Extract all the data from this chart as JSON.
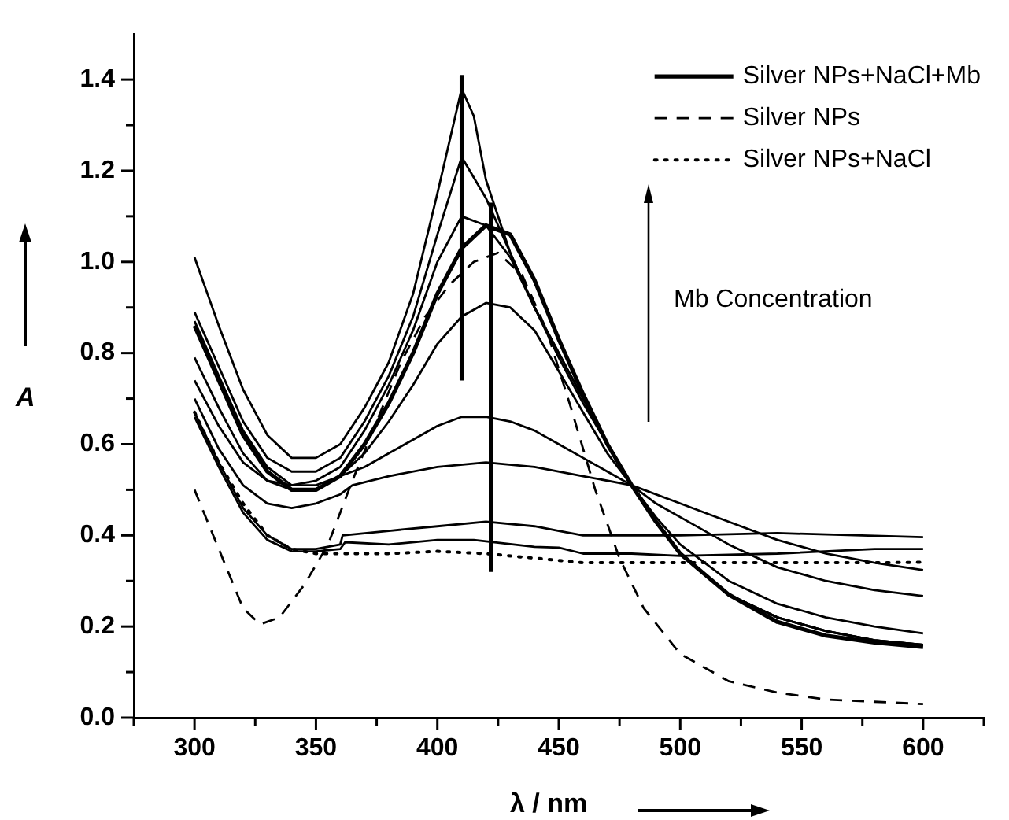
{
  "chart_data": {
    "type": "line",
    "xlabel": "λ / nm",
    "ylabel": "A",
    "xlim": [
      275,
      625
    ],
    "ylim": [
      0,
      1.5
    ],
    "xticks": [
      {
        "value": 275,
        "label": null
      },
      300,
      {
        "value": 325,
        "label": null
      },
      350,
      {
        "value": 375,
        "label": null
      },
      400,
      {
        "value": 425,
        "label": null
      },
      450,
      {
        "value": 475,
        "label": null
      },
      500,
      {
        "value": 525,
        "label": null
      },
      550,
      {
        "value": 575,
        "label": null
      },
      600,
      {
        "value": 625,
        "label": null
      }
    ],
    "yticks": [
      {
        "value": 0,
        "label": "0.0"
      },
      {
        "value": 0.1,
        "label": null
      },
      {
        "value": 0.2,
        "label": "0.2"
      },
      {
        "value": 0.3,
        "label": null
      },
      {
        "value": 0.4,
        "label": "0.4"
      },
      {
        "value": 0.5,
        "label": null
      },
      {
        "value": 0.6,
        "label": "0.6"
      },
      {
        "value": 0.7,
        "label": null
      },
      {
        "value": 0.8,
        "label": "0.8"
      },
      {
        "value": 0.9,
        "label": null
      },
      {
        "value": 1.0,
        "label": "1.0"
      },
      {
        "value": 1.1,
        "label": null
      },
      {
        "value": 1.2,
        "label": "1.2"
      },
      {
        "value": 1.3,
        "label": null
      },
      {
        "value": 1.4,
        "label": "1.4"
      }
    ],
    "grid": false,
    "legend": "top right",
    "marker": "none",
    "annotations": [
      "Mb Concentration"
    ],
    "series": [
      {
        "name": "Silver NPs+NaCl+Mb",
        "color": "#000000",
        "line_style": "solid",
        "x": [
          300,
          310,
          320,
          330,
          340,
          350,
          360,
          370,
          380,
          390,
          400,
          410,
          420,
          430,
          440,
          450,
          460,
          470,
          480,
          490,
          500,
          520,
          540,
          560,
          580,
          600
        ],
        "values": [
          0.86,
          0.74,
          0.62,
          0.54,
          0.5,
          0.5,
          0.53,
          0.6,
          0.69,
          0.8,
          0.93,
          1.03,
          1.08,
          1.06,
          0.96,
          0.83,
          0.71,
          0.6,
          0.51,
          0.43,
          0.36,
          0.27,
          0.21,
          0.18,
          0.165,
          0.155
        ]
      },
      {
        "name": "Silver NPs",
        "color": "#000000",
        "line_style": "dashed",
        "x": [
          300,
          310,
          320,
          327,
          335,
          345,
          355,
          365,
          375,
          385,
          395,
          405,
          415,
          425,
          435,
          445,
          455,
          465,
          475,
          485,
          500,
          520,
          540,
          560,
          580,
          600
        ],
        "values": [
          0.5,
          0.37,
          0.24,
          0.205,
          0.22,
          0.29,
          0.38,
          0.52,
          0.65,
          0.78,
          0.88,
          0.95,
          1.0,
          1.02,
          0.97,
          0.85,
          0.68,
          0.5,
          0.35,
          0.24,
          0.14,
          0.08,
          0.055,
          0.04,
          0.035,
          0.03
        ]
      },
      {
        "name": "Silver NPs+NaCl",
        "color": "#000000",
        "line_style": "dotted",
        "x": [
          300,
          310,
          320,
          330,
          340,
          350,
          360,
          380,
          400,
          420,
          440,
          460,
          480,
          500,
          540,
          580,
          600
        ],
        "values": [
          0.67,
          0.56,
          0.47,
          0.4,
          0.37,
          0.36,
          0.36,
          0.36,
          0.365,
          0.36,
          0.35,
          0.34,
          0.34,
          0.34,
          0.34,
          0.34,
          0.341
        ]
      },
      {
        "color": "#000000",
        "line_style": "solid",
        "x": [
          300,
          310,
          320,
          330,
          340,
          350,
          360,
          370,
          380,
          390,
          400,
          410,
          415,
          420,
          430,
          440,
          450,
          460,
          470,
          480,
          490,
          500,
          520,
          540,
          560,
          580,
          600
        ],
        "values": [
          1.01,
          0.86,
          0.72,
          0.62,
          0.57,
          0.57,
          0.6,
          0.68,
          0.78,
          0.93,
          1.15,
          1.38,
          1.32,
          1.18,
          1.02,
          0.9,
          0.8,
          0.7,
          0.6,
          0.51,
          0.43,
          0.36,
          0.27,
          0.22,
          0.19,
          0.17,
          0.16
        ]
      },
      {
        "color": "#000000",
        "line_style": "solid",
        "x": [
          300,
          310,
          320,
          330,
          340,
          350,
          360,
          370,
          380,
          390,
          400,
          410,
          420,
          430,
          440,
          450,
          460,
          470,
          480,
          490,
          500,
          520,
          540,
          560,
          580,
          600
        ],
        "values": [
          0.89,
          0.77,
          0.65,
          0.57,
          0.54,
          0.54,
          0.57,
          0.65,
          0.75,
          0.88,
          1.06,
          1.23,
          1.14,
          1.02,
          0.9,
          0.8,
          0.7,
          0.6,
          0.51,
          0.43,
          0.36,
          0.27,
          0.22,
          0.19,
          0.17,
          0.16
        ]
      },
      {
        "color": "#000000",
        "line_style": "solid",
        "x": [
          300,
          310,
          320,
          330,
          340,
          350,
          360,
          370,
          380,
          390,
          400,
          410,
          420,
          430,
          440,
          450,
          460,
          470,
          480,
          490,
          500,
          520,
          540,
          560,
          580,
          600
        ],
        "values": [
          0.87,
          0.75,
          0.63,
          0.55,
          0.51,
          0.52,
          0.55,
          0.63,
          0.73,
          0.85,
          1.0,
          1.1,
          1.08,
          1.01,
          0.9,
          0.79,
          0.69,
          0.6,
          0.51,
          0.43,
          0.36,
          0.27,
          0.22,
          0.19,
          0.17,
          0.16
        ]
      },
      {
        "color": "#000000",
        "line_style": "solid",
        "x": [
          300,
          310,
          320,
          330,
          340,
          350,
          360,
          370,
          380,
          390,
          400,
          410,
          420,
          430,
          440,
          450,
          460,
          470,
          480,
          490,
          500,
          520,
          540,
          560,
          580,
          600
        ],
        "values": [
          0.79,
          0.68,
          0.58,
          0.52,
          0.5,
          0.5,
          0.53,
          0.58,
          0.65,
          0.73,
          0.82,
          0.88,
          0.91,
          0.9,
          0.85,
          0.76,
          0.67,
          0.58,
          0.51,
          0.44,
          0.38,
          0.3,
          0.25,
          0.22,
          0.2,
          0.185
        ]
      },
      {
        "color": "#000000",
        "line_style": "solid",
        "x": [
          300,
          310,
          320,
          330,
          340,
          350,
          360,
          370,
          380,
          390,
          400,
          410,
          420,
          430,
          440,
          450,
          460,
          470,
          480,
          490,
          500,
          520,
          540,
          560,
          580,
          600
        ],
        "values": [
          0.74,
          0.64,
          0.56,
          0.52,
          0.51,
          0.51,
          0.53,
          0.55,
          0.58,
          0.61,
          0.64,
          0.66,
          0.66,
          0.65,
          0.63,
          0.6,
          0.57,
          0.54,
          0.51,
          0.47,
          0.44,
          0.38,
          0.33,
          0.3,
          0.28,
          0.267
        ]
      },
      {
        "color": "#000000",
        "line_style": "solid",
        "x": [
          300,
          310,
          320,
          330,
          340,
          350,
          360,
          365,
          380,
          400,
          420,
          440,
          460,
          480,
          500,
          520,
          540,
          560,
          580,
          600
        ],
        "values": [
          0.7,
          0.59,
          0.51,
          0.47,
          0.46,
          0.47,
          0.49,
          0.51,
          0.53,
          0.55,
          0.56,
          0.55,
          0.53,
          0.51,
          0.47,
          0.43,
          0.39,
          0.36,
          0.34,
          0.324
        ]
      },
      {
        "color": "#000000",
        "line_style": "solid",
        "x": [
          300,
          310,
          320,
          330,
          340,
          350,
          360,
          361,
          380,
          400,
          420,
          440,
          450,
          460,
          480,
          500,
          540,
          600
        ],
        "values": [
          0.67,
          0.56,
          0.46,
          0.4,
          0.37,
          0.37,
          0.38,
          0.4,
          0.41,
          0.42,
          0.43,
          0.42,
          0.41,
          0.4,
          0.4,
          0.4,
          0.405,
          0.396
        ]
      },
      {
        "color": "#000000",
        "line_style": "solid",
        "x": [
          300,
          310,
          320,
          330,
          340,
          350,
          360,
          362,
          380,
          400,
          415,
          440,
          450,
          460,
          480,
          500,
          540,
          580,
          600
        ],
        "values": [
          0.66,
          0.55,
          0.45,
          0.39,
          0.365,
          0.365,
          0.37,
          0.385,
          0.38,
          0.39,
          0.39,
          0.375,
          0.373,
          0.36,
          0.36,
          0.355,
          0.36,
          0.37,
          0.37
        ]
      },
      {
        "color": "#000000",
        "line_style": "solid",
        "x": [
          410,
          410
        ],
        "values": [
          0.74,
          1.41
        ]
      },
      {
        "color": "#000000",
        "line_style": "solid",
        "x": [
          422,
          422
        ],
        "values": [
          0.32,
          1.13
        ]
      }
    ]
  }
}
